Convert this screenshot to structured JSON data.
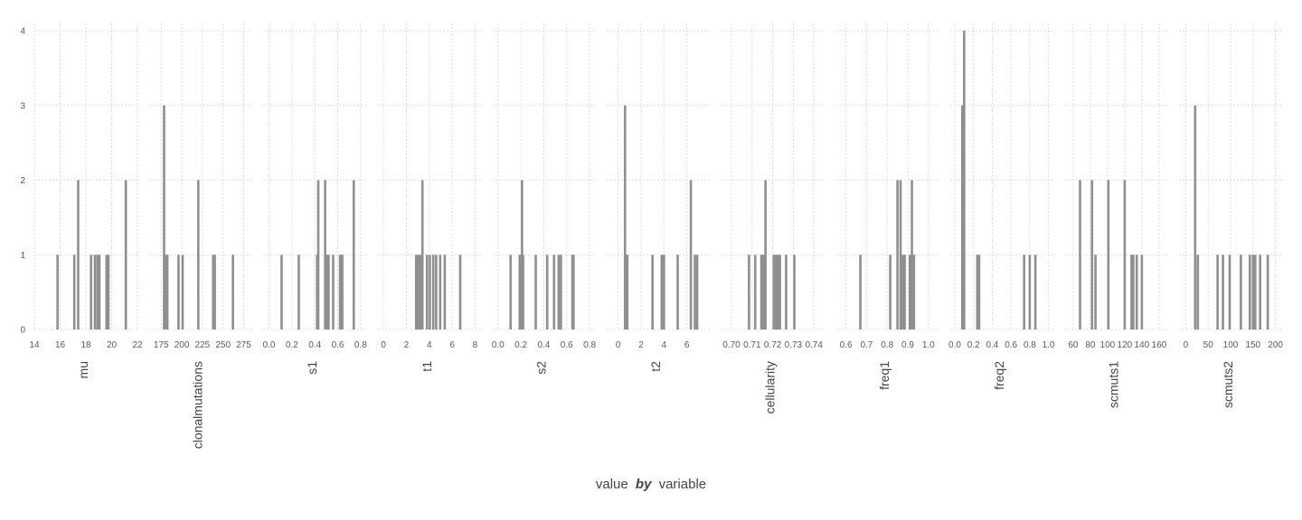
{
  "chart_data": {
    "type": "bar",
    "subtype": "faceted histogram",
    "xlabel": {
      "pre": "value",
      "by": "by",
      "post": "variable"
    },
    "ylabel": "",
    "ylim": [
      0,
      4
    ],
    "y_ticks": [
      0,
      1,
      2,
      3,
      4
    ],
    "grid": true,
    "bar_color": "#8f8f8f",
    "grid_color": "#dddddd",
    "facets": [
      {
        "name": "mu",
        "xlim": [
          14,
          22
        ],
        "x_ticks": [
          "14",
          "16",
          "18",
          "20",
          "22"
        ],
        "x_tick_values": [
          14,
          16,
          18,
          20,
          22
        ],
        "bin_width": 0.08,
        "bars": [
          [
            15.8,
            1
          ],
          [
            17.1,
            1
          ],
          [
            17.4,
            2
          ],
          [
            18.4,
            1
          ],
          [
            18.7,
            1
          ],
          [
            18.9,
            1
          ],
          [
            19.05,
            1
          ],
          [
            19.6,
            1
          ],
          [
            19.75,
            1
          ],
          [
            21.1,
            2
          ]
        ]
      },
      {
        "name": "clonalmutations",
        "xlim": [
          160,
          285
        ],
        "x_ticks": [
          "175",
          "200",
          "225",
          "250",
          "275"
        ],
        "x_tick_values": [
          175,
          200,
          225,
          250,
          275
        ],
        "bin_width": 1.2,
        "bars": [
          [
            178.5,
            3
          ],
          [
            180.5,
            1
          ],
          [
            182.5,
            1
          ],
          [
            196,
            1
          ],
          [
            201,
            1
          ],
          [
            220,
            2
          ],
          [
            238,
            1
          ],
          [
            240,
            1
          ],
          [
            262,
            1
          ]
        ]
      },
      {
        "name": "s1",
        "xlim": [
          -0.05,
          0.85
        ],
        "x_ticks": [
          "0.0",
          "0.2",
          "0.4",
          "0.6",
          "0.8"
        ],
        "x_tick_values": [
          0,
          0.2,
          0.4,
          0.6,
          0.8
        ],
        "bin_width": 0.01,
        "bars": [
          [
            0.11,
            1
          ],
          [
            0.26,
            1
          ],
          [
            0.42,
            1
          ],
          [
            0.43,
            2
          ],
          [
            0.49,
            2
          ],
          [
            0.5,
            1
          ],
          [
            0.51,
            1
          ],
          [
            0.52,
            1
          ],
          [
            0.56,
            1
          ],
          [
            0.62,
            1
          ],
          [
            0.63,
            1
          ],
          [
            0.64,
            1
          ],
          [
            0.74,
            2
          ]
        ]
      },
      {
        "name": "t1",
        "xlim": [
          -0.5,
          8.5
        ],
        "x_ticks": [
          "0",
          "2",
          "4",
          "6",
          "8"
        ],
        "x_tick_values": [
          0,
          2,
          4,
          6,
          8
        ],
        "bin_width": 0.12,
        "bars": [
          [
            2.85,
            1
          ],
          [
            3.05,
            1
          ],
          [
            3.2,
            1
          ],
          [
            3.4,
            2
          ],
          [
            3.8,
            1
          ],
          [
            4.05,
            1
          ],
          [
            4.35,
            1
          ],
          [
            4.6,
            1
          ],
          [
            4.95,
            1
          ],
          [
            5.35,
            1
          ],
          [
            6.7,
            1
          ]
        ]
      },
      {
        "name": "s2",
        "xlim": [
          -0.05,
          0.85
        ],
        "x_ticks": [
          "0.0",
          "0.2",
          "0.4",
          "0.6",
          "0.8"
        ],
        "x_tick_values": [
          0,
          0.2,
          0.4,
          0.6,
          0.8
        ],
        "bin_width": 0.01,
        "bars": [
          [
            0.11,
            1
          ],
          [
            0.19,
            1
          ],
          [
            0.2,
            1
          ],
          [
            0.21,
            2
          ],
          [
            0.22,
            1
          ],
          [
            0.33,
            1
          ],
          [
            0.43,
            1
          ],
          [
            0.49,
            1
          ],
          [
            0.53,
            1
          ],
          [
            0.55,
            1
          ],
          [
            0.65,
            1
          ],
          [
            0.66,
            1
          ]
        ]
      },
      {
        "name": "t2",
        "xlim": [
          -1,
          8
        ],
        "x_ticks": [
          "0",
          "2",
          "4",
          "6"
        ],
        "x_tick_values": [
          0,
          2,
          4,
          6
        ],
        "bin_width": 0.12,
        "bars": [
          [
            0.6,
            3
          ],
          [
            0.8,
            1
          ],
          [
            3.0,
            1
          ],
          [
            3.8,
            1
          ],
          [
            4.0,
            1
          ],
          [
            5.2,
            1
          ],
          [
            6.35,
            2
          ],
          [
            6.7,
            1
          ],
          [
            6.9,
            1
          ]
        ]
      },
      {
        "name": "cellularity",
        "xlim": [
          0.695,
          0.745
        ],
        "x_ticks": [
          "0.70",
          "0.71",
          "0.72",
          "0.73",
          "0.74"
        ],
        "x_tick_values": [
          0.7,
          0.71,
          0.72,
          0.73,
          0.74
        ],
        "bin_width": 0.0005,
        "bars": [
          [
            0.7085,
            1
          ],
          [
            0.7115,
            1
          ],
          [
            0.7145,
            1
          ],
          [
            0.7155,
            1
          ],
          [
            0.7165,
            2
          ],
          [
            0.7205,
            1
          ],
          [
            0.7215,
            1
          ],
          [
            0.7225,
            1
          ],
          [
            0.7235,
            1
          ],
          [
            0.7265,
            1
          ],
          [
            0.7305,
            1
          ]
        ]
      },
      {
        "name": "freq1",
        "xlim": [
          0.55,
          1.05
        ],
        "x_ticks": [
          "0.6",
          "0.7",
          "0.8",
          "0.9",
          "1.0"
        ],
        "x_tick_values": [
          0.6,
          0.7,
          0.8,
          0.9,
          1.0
        ],
        "bin_width": 0.005,
        "bars": [
          [
            0.67,
            1
          ],
          [
            0.815,
            1
          ],
          [
            0.85,
            2
          ],
          [
            0.865,
            2
          ],
          [
            0.875,
            1
          ],
          [
            0.885,
            1
          ],
          [
            0.91,
            1
          ],
          [
            0.92,
            2
          ],
          [
            0.93,
            1
          ]
        ]
      },
      {
        "name": "freq2",
        "xlim": [
          -0.05,
          1.05
        ],
        "x_ticks": [
          "0.0",
          "0.2",
          "0.4",
          "0.6",
          "0.8",
          "1.0"
        ],
        "x_tick_values": [
          0,
          0.2,
          0.4,
          0.6,
          0.8,
          1.0
        ],
        "bin_width": 0.012,
        "bars": [
          [
            0.08,
            3
          ],
          [
            0.1,
            4
          ],
          [
            0.24,
            1
          ],
          [
            0.26,
            1
          ],
          [
            0.74,
            1
          ],
          [
            0.8,
            1
          ],
          [
            0.86,
            1
          ]
        ]
      },
      {
        "name": "scmuts1",
        "xlim": [
          50,
          170
        ],
        "x_ticks": [
          "60",
          "80",
          "100",
          "120",
          "140",
          "160"
        ],
        "x_tick_values": [
          60,
          80,
          100,
          120,
          140,
          160
        ],
        "bin_width": 1.2,
        "bars": [
          [
            68,
            2
          ],
          [
            82,
            2
          ],
          [
            86,
            1
          ],
          [
            101,
            2
          ],
          [
            120,
            2
          ],
          [
            128,
            1
          ],
          [
            130,
            1
          ],
          [
            134,
            1
          ],
          [
            140,
            1
          ]
        ]
      },
      {
        "name": "scmuts2",
        "xlim": [
          -15,
          215
        ],
        "x_ticks": [
          "0",
          "50",
          "100",
          "150",
          "200"
        ],
        "x_tick_values": [
          0,
          50,
          100,
          150,
          200
        ],
        "bin_width": 2.4,
        "bars": [
          [
            21,
            3
          ],
          [
            27,
            1
          ],
          [
            71,
            1
          ],
          [
            83,
            1
          ],
          [
            98,
            1
          ],
          [
            123,
            1
          ],
          [
            143,
            1
          ],
          [
            150,
            1
          ],
          [
            155,
            1
          ],
          [
            166,
            1
          ],
          [
            183,
            1
          ]
        ]
      }
    ]
  }
}
